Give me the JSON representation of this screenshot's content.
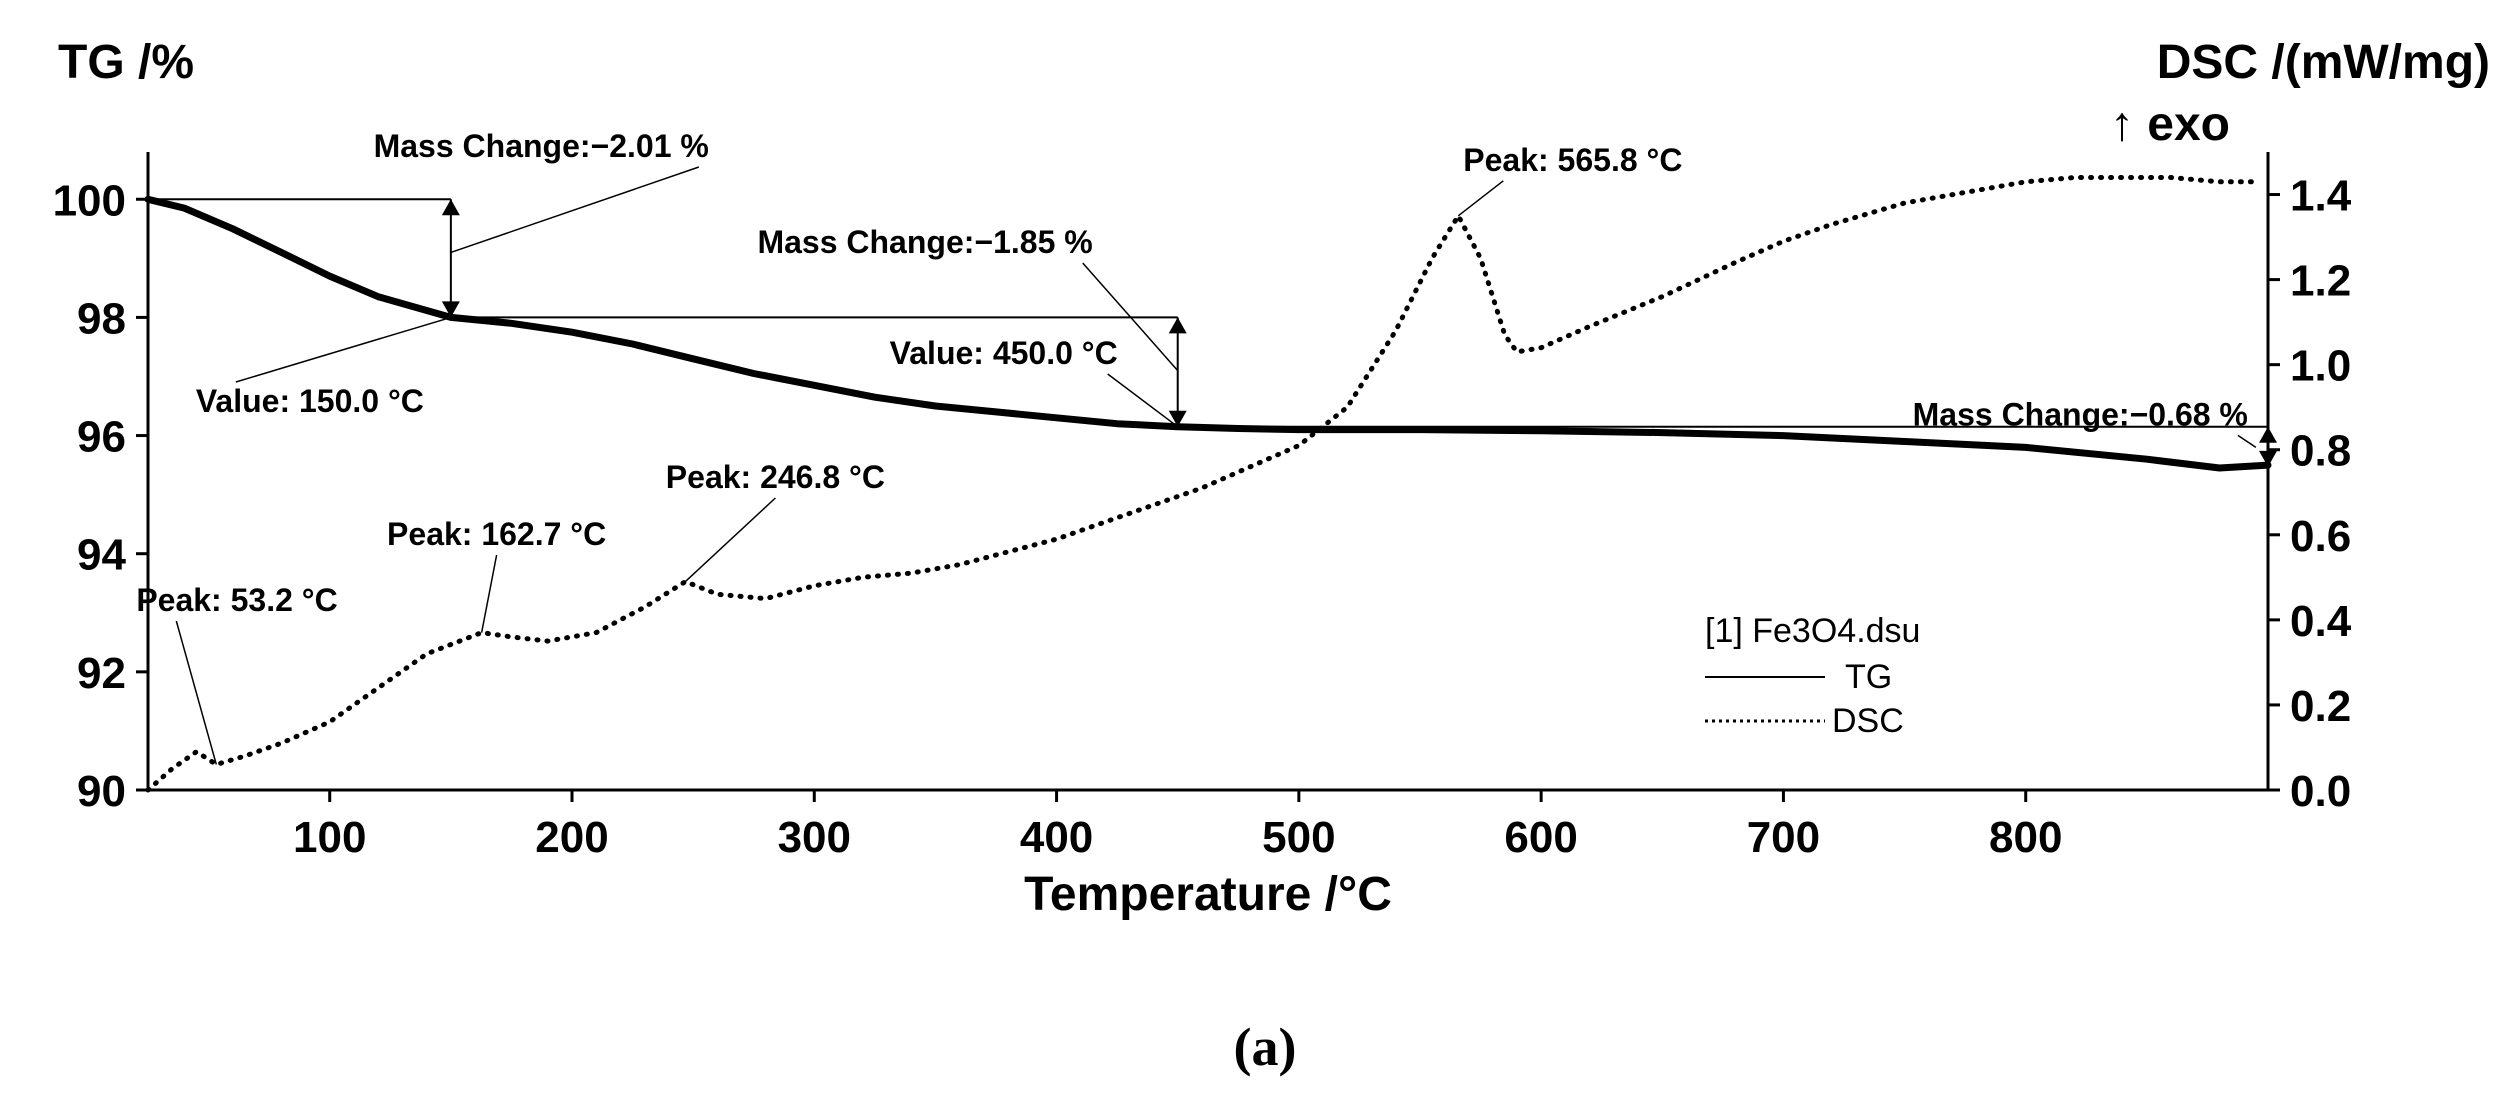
{
  "chart_data": {
    "type": "line",
    "xlabel": "Temperature /°C",
    "ylabel_left": "TG /%",
    "ylabel_right": "DSC /(mW/mg)",
    "right_axis_note": "↑ exo",
    "caption": "(a)",
    "xlim": [
      25,
      900
    ],
    "ylim_left": [
      90,
      100.8
    ],
    "ylim_right": [
      0,
      1.5
    ],
    "x_ticks": [
      100,
      200,
      300,
      400,
      500,
      600,
      700,
      800
    ],
    "y_ticks_left": [
      90,
      92,
      94,
      96,
      98,
      100
    ],
    "y_ticks_right": [
      0.0,
      0.2,
      0.4,
      0.6,
      0.8,
      1.0,
      1.2,
      1.4
    ],
    "y_tick_labels_right": [
      "0.0",
      "0.2",
      "0.4",
      "0.6",
      "0.8",
      "1.0",
      "1.2",
      "1.4"
    ],
    "legend": {
      "file": "[1] Fe3O4.dsu",
      "entries": [
        "TG",
        "DSC"
      ]
    },
    "series": [
      {
        "name": "TG",
        "axis": "left",
        "style": "solid",
        "x": [
          25,
          40,
          60,
          80,
          100,
          120,
          150,
          175,
          200,
          225,
          250,
          275,
          300,
          325,
          350,
          375,
          400,
          425,
          450,
          475,
          500,
          550,
          600,
          650,
          700,
          750,
          800,
          850,
          880,
          900
        ],
        "y": [
          100,
          99.85,
          99.5,
          99.1,
          98.7,
          98.35,
          98.0,
          97.9,
          97.75,
          97.55,
          97.3,
          97.05,
          96.85,
          96.65,
          96.5,
          96.4,
          96.3,
          96.2,
          96.15,
          96.12,
          96.1,
          96.1,
          96.08,
          96.05,
          96.0,
          95.9,
          95.8,
          95.6,
          95.45,
          95.5
        ]
      },
      {
        "name": "DSC",
        "axis": "right",
        "style": "dotted",
        "x": [
          25,
          35,
          45,
          53.2,
          65,
          80,
          100,
          120,
          140,
          162.7,
          175,
          190,
          210,
          230,
          246.8,
          260,
          280,
          300,
          320,
          340,
          360,
          380,
          400,
          420,
          440,
          460,
          480,
          500,
          520,
          540,
          555,
          565.8,
          575,
          585,
          590,
          600,
          620,
          650,
          680,
          700,
          720,
          750,
          780,
          800,
          820,
          840,
          860,
          880,
          895
        ],
        "y": [
          0.0,
          0.05,
          0.09,
          0.06,
          0.08,
          0.11,
          0.16,
          0.24,
          0.32,
          0.37,
          0.36,
          0.35,
          0.37,
          0.43,
          0.49,
          0.46,
          0.45,
          0.48,
          0.5,
          0.51,
          0.53,
          0.56,
          0.59,
          0.63,
          0.67,
          0.71,
          0.76,
          0.81,
          0.9,
          1.08,
          1.25,
          1.35,
          1.25,
          1.07,
          1.03,
          1.04,
          1.09,
          1.16,
          1.24,
          1.29,
          1.33,
          1.38,
          1.41,
          1.43,
          1.44,
          1.44,
          1.44,
          1.43,
          1.43
        ]
      }
    ],
    "steps": [
      {
        "x1": 25,
        "x2": 150,
        "y_top": 100,
        "y_bottom": 98.0
      },
      {
        "x1": 150,
        "x2": 450,
        "y_top": 98.0,
        "y_bottom": 96.15
      },
      {
        "x1": 450,
        "x2": 900,
        "y_top": 96.15,
        "y_bottom": 95.47
      }
    ],
    "annotations": [
      {
        "text": "Mass Change:−2.01 %",
        "x": 150,
        "y": 99.1,
        "axis": "left",
        "label_anchor": "near-top-left"
      },
      {
        "text": "Value: 150.0 °C",
        "x": 150,
        "y": 98.0,
        "axis": "left",
        "label_anchor": "below-left"
      },
      {
        "text": "Mass Change:−1.85 %",
        "x": 450,
        "y": 97.1,
        "axis": "left",
        "label_anchor": "above-left"
      },
      {
        "text": "Value: 450.0 °C",
        "x": 450,
        "y": 96.15,
        "axis": "left",
        "label_anchor": "above-left"
      },
      {
        "text": "Mass Change:−0.68 %",
        "x": 895,
        "y": 95.8,
        "axis": "left",
        "label_anchor": "above-left"
      },
      {
        "text": "Peak: 565.8 °C",
        "x": 565.8,
        "y": 1.35,
        "axis": "right",
        "label_anchor": "above-right"
      },
      {
        "text": "Peak: 246.8 °C",
        "x": 246.8,
        "y": 0.49,
        "axis": "right",
        "label_anchor": "above-right"
      },
      {
        "text": "Peak: 162.7 °C",
        "x": 162.7,
        "y": 0.37,
        "axis": "right",
        "label_anchor": "above-left"
      },
      {
        "text": "Peak: 53.2 °C",
        "x": 53.2,
        "y": 0.06,
        "axis": "right",
        "label_anchor": "above-right"
      }
    ]
  }
}
